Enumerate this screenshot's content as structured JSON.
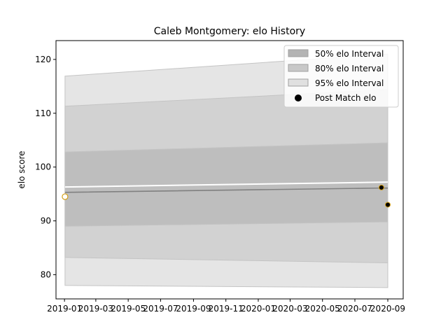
{
  "chart_data": {
    "type": "line",
    "title": "Caleb Montgomery: elo History",
    "xlabel": "",
    "ylabel": "elo score",
    "xlim": [
      "2018-12-16",
      "2020-09-30"
    ],
    "ylim": [
      75.5,
      123.5
    ],
    "x_ticks": [
      "2019-01",
      "2019-03",
      "2019-05",
      "2019-07",
      "2019-09",
      "2019-11",
      "2020-01",
      "2020-03",
      "2020-05",
      "2020-07",
      "2020-09"
    ],
    "y_ticks": [
      80,
      90,
      100,
      110,
      120
    ],
    "x_tick_dates": [
      "2019-01-01",
      "2019-03-01",
      "2019-05-01",
      "2019-07-01",
      "2019-09-01",
      "2019-11-01",
      "2020-01-01",
      "2020-03-01",
      "2020-05-01",
      "2020-07-01",
      "2020-09-01"
    ],
    "band_x": [
      "2019-01-02",
      "2020-09-01"
    ],
    "bands": [
      {
        "name": "95% elo Interval",
        "lower": [
          78.0,
          77.6
        ],
        "upper": [
          116.9,
          121.0
        ],
        "color": "#e5e5e5"
      },
      {
        "name": "80% elo Interval",
        "lower": [
          83.2,
          82.2
        ],
        "upper": [
          111.3,
          114.4
        ],
        "color": "#d2d2d2"
      },
      {
        "name": "50% elo Interval",
        "lower": [
          89.0,
          89.8
        ],
        "upper": [
          102.8,
          104.5
        ],
        "color": "#bebebe"
      }
    ],
    "mean_line": {
      "x": [
        "2019-01-02",
        "2020-08-20",
        "2020-09-01"
      ],
      "y": [
        95.3,
        96.1,
        96.1
      ]
    },
    "pre_line": {
      "x": [
        "2019-01-02",
        "2020-09-01"
      ],
      "y": [
        96.3,
        97.2
      ]
    },
    "pre_match_points": [
      {
        "x": "2019-01-02",
        "y": 94.5
      }
    ],
    "post_match_points": [
      {
        "x": "2020-08-20",
        "y": 96.2
      },
      {
        "x": "2020-09-01",
        "y": 93.0
      }
    ],
    "legend": {
      "placement": "top-right",
      "entries": [
        {
          "label": "50% elo Interval",
          "swatch": "band",
          "color": "#b4b4b4"
        },
        {
          "label": "80% elo Interval",
          "swatch": "band",
          "color": "#c8c8c8"
        },
        {
          "label": "95% elo Interval",
          "swatch": "band",
          "color": "#e0e0e0"
        },
        {
          "label": "Post Match elo",
          "swatch": "dot",
          "color": "#000000"
        }
      ]
    },
    "colors": {
      "mean_line": "#808080",
      "pre_line": "#ffffff",
      "point_edge": "#d4a017",
      "post_fill": "#000000",
      "pre_fill": "#ffffff"
    },
    "grid": false
  }
}
